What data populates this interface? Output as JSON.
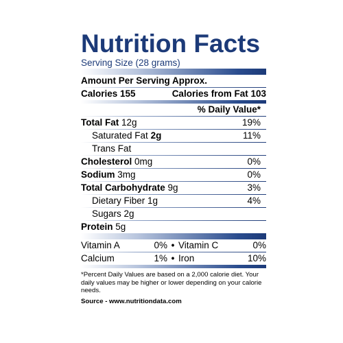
{
  "title": "Nutrition Facts",
  "serving_size": "Serving Size (28 grams)",
  "amount_per_serving": "Amount Per Serving Approx.",
  "calories_label": "Calories 155",
  "calories_fat_label": "Calories from Fat 103",
  "daily_value_header": "% Daily Value*",
  "nutrients": [
    {
      "name": "Total Fat",
      "amount": "12g",
      "dv": "19%"
    },
    {
      "name": "Saturated Fat",
      "amount": "2g",
      "dv": "11%"
    },
    {
      "name": "Trans Fat",
      "amount": "",
      "dv": ""
    },
    {
      "name": "Cholesterol",
      "amount": "0mg",
      "dv": "0%"
    },
    {
      "name": "Sodium",
      "amount": "3mg",
      "dv": "0%"
    },
    {
      "name": "Total Carbohydrate",
      "amount": "9g",
      "dv": "3%"
    },
    {
      "name": "Dietary Fiber",
      "amount": "1g",
      "dv": "4%"
    },
    {
      "name": "Sugars",
      "amount": "2g",
      "dv": ""
    },
    {
      "name": "Protein",
      "amount": "5g",
      "dv": ""
    }
  ],
  "vitamins": [
    {
      "name1": "Vitamin A",
      "pct1": "0%",
      "bullet": "•",
      "name2": "Vitamin C",
      "pct2": "0%"
    },
    {
      "name1": "Calcium",
      "pct1": "1%",
      "bullet": "•",
      "name2": "Iron",
      "pct2": "10%"
    }
  ],
  "footnote": "*Percent Daily Values are based on a 2,000 calorie diet. Your daily values may be higher or lower depending on your calorie needs.",
  "source": "Source - www.nutritiondata.com",
  "colors": {
    "brand": "#1c3a78"
  }
}
